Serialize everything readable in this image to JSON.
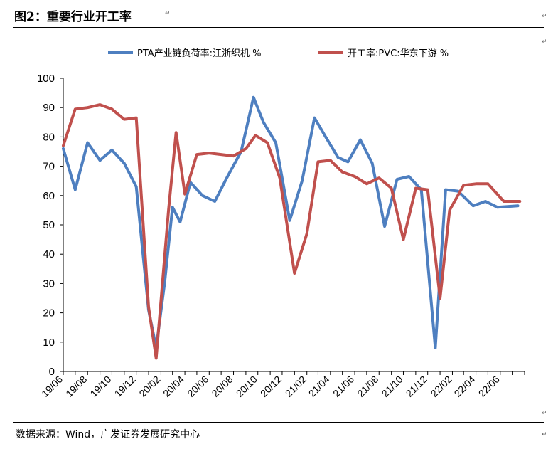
{
  "figure": {
    "title": "图2：重要行业开工率",
    "source": "数据来源：Wind，广发证券发展研究中心"
  },
  "colors": {
    "pta": "#4E7FC0",
    "pvc": "#C0504D",
    "axis": "#000000"
  },
  "chart_data": {
    "type": "line",
    "legend_position": "top",
    "grid": false,
    "ylim": [
      0,
      100
    ],
    "yticks": [
      0,
      10,
      20,
      30,
      40,
      50,
      60,
      70,
      80,
      90,
      100
    ],
    "xlim": [
      "2019-06-01",
      "2022-08-01"
    ],
    "xticks": [
      "19/06",
      "19/08",
      "19/10",
      "19/12",
      "20/02",
      "20/04",
      "20/06",
      "20/08",
      "20/10",
      "20/12",
      "21/02",
      "21/04",
      "21/06",
      "21/08",
      "21/10",
      "21/12",
      "22/02",
      "22/04",
      "22/06"
    ],
    "series": [
      {
        "name": "PTA产业链负荷率:江浙织机 %",
        "color": "#4E7FC0",
        "points": [
          [
            "2019-06-01",
            76
          ],
          [
            "2019-07-01",
            62
          ],
          [
            "2019-08-01",
            78
          ],
          [
            "2019-09-01",
            72
          ],
          [
            "2019-10-01",
            75.5
          ],
          [
            "2019-11-01",
            71
          ],
          [
            "2019-12-01",
            63
          ],
          [
            "2020-01-01",
            21
          ],
          [
            "2020-01-20",
            8
          ],
          [
            "2020-02-10",
            30
          ],
          [
            "2020-03-01",
            56
          ],
          [
            "2020-03-20",
            51
          ],
          [
            "2020-04-15",
            64.5
          ],
          [
            "2020-05-15",
            60
          ],
          [
            "2020-06-15",
            58
          ],
          [
            "2020-07-15",
            66
          ],
          [
            "2020-08-20",
            75
          ],
          [
            "2020-09-20",
            93.5
          ],
          [
            "2020-10-15",
            85
          ],
          [
            "2020-11-15",
            78
          ],
          [
            "2020-12-20",
            51.5
          ],
          [
            "2021-01-20",
            65
          ],
          [
            "2021-02-20",
            86.5
          ],
          [
            "2021-03-20",
            80
          ],
          [
            "2021-04-20",
            73
          ],
          [
            "2021-05-15",
            71.5
          ],
          [
            "2021-06-15",
            79
          ],
          [
            "2021-07-15",
            71
          ],
          [
            "2021-08-15",
            49.5
          ],
          [
            "2021-09-15",
            65.5
          ],
          [
            "2021-10-15",
            66.5
          ],
          [
            "2021-11-15",
            62
          ],
          [
            "2021-12-20",
            8
          ],
          [
            "2022-01-15",
            62
          ],
          [
            "2022-02-15",
            61.5
          ],
          [
            "2022-03-25",
            56.5
          ],
          [
            "2022-04-25",
            58
          ],
          [
            "2022-05-25",
            56
          ],
          [
            "2022-07-15",
            56.5
          ]
        ]
      },
      {
        "name": "开工率:PVC:华东下游 %",
        "color": "#C0504D",
        "points": [
          [
            "2019-06-01",
            77
          ],
          [
            "2019-07-01",
            89.5
          ],
          [
            "2019-08-01",
            90
          ],
          [
            "2019-09-01",
            91
          ],
          [
            "2019-10-01",
            89.5
          ],
          [
            "2019-11-01",
            86
          ],
          [
            "2019-12-01",
            86.5
          ],
          [
            "2020-01-01",
            22
          ],
          [
            "2020-01-20",
            4.5
          ],
          [
            "2020-02-20",
            55
          ],
          [
            "2020-03-10",
            81.5
          ],
          [
            "2020-04-01",
            60.5
          ],
          [
            "2020-05-01",
            74
          ],
          [
            "2020-06-01",
            74.5
          ],
          [
            "2020-07-01",
            74
          ],
          [
            "2020-08-01",
            73.5
          ],
          [
            "2020-09-01",
            76
          ],
          [
            "2020-09-25",
            80.5
          ],
          [
            "2020-10-25",
            78
          ],
          [
            "2020-11-25",
            66
          ],
          [
            "2021-01-01",
            33.5
          ],
          [
            "2021-02-01",
            47
          ],
          [
            "2021-03-01",
            71.5
          ],
          [
            "2021-04-01",
            72
          ],
          [
            "2021-05-01",
            68
          ],
          [
            "2021-06-01",
            66.5
          ],
          [
            "2021-07-01",
            64
          ],
          [
            "2021-08-01",
            66
          ],
          [
            "2021-09-01",
            62.5
          ],
          [
            "2021-10-01",
            45
          ],
          [
            "2021-11-01",
            62.5
          ],
          [
            "2021-12-01",
            62
          ],
          [
            "2022-01-01",
            25
          ],
          [
            "2022-01-25",
            55
          ],
          [
            "2022-03-01",
            63.5
          ],
          [
            "2022-04-01",
            64
          ],
          [
            "2022-05-01",
            64
          ],
          [
            "2022-06-10",
            58
          ],
          [
            "2022-07-20",
            58
          ]
        ]
      }
    ]
  }
}
